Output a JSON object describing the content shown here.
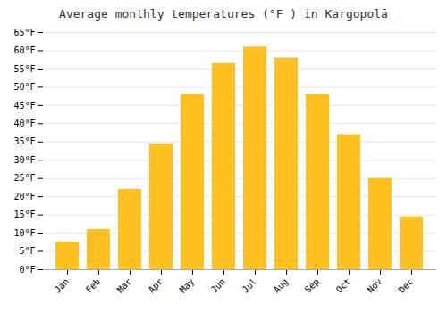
{
  "chart_data": {
    "type": "bar",
    "title": "Average monthly temperatures (°F ) in Kargopolā",
    "categories": [
      "Jan",
      "Feb",
      "Mar",
      "Apr",
      "May",
      "Jun",
      "Jul",
      "Aug",
      "Sep",
      "Oct",
      "Nov",
      "Dec"
    ],
    "values": [
      7.5,
      11,
      22,
      34.5,
      48,
      56.5,
      61,
      58,
      48,
      37,
      25,
      14.5
    ],
    "color": "#FFC020",
    "ylim": [
      0,
      65
    ],
    "yticks": [
      {
        "value": 0,
        "label": "0°F"
      },
      {
        "value": 5,
        "label": "5°F"
      },
      {
        "value": 10,
        "label": "10°F"
      },
      {
        "value": 15,
        "label": "15°F"
      },
      {
        "value": 20,
        "label": "20°F"
      },
      {
        "value": 25,
        "label": "25°F"
      },
      {
        "value": 30,
        "label": "30°F"
      },
      {
        "value": 35,
        "label": "35°F"
      },
      {
        "value": 40,
        "label": "40°F"
      },
      {
        "value": 45,
        "label": "45°F"
      },
      {
        "value": 50,
        "label": "50°F"
      },
      {
        "value": 55,
        "label": "55°F"
      },
      {
        "value": 60,
        "label": "60°F"
      },
      {
        "value": 65,
        "label": "65°F"
      }
    ],
    "grid": true
  }
}
